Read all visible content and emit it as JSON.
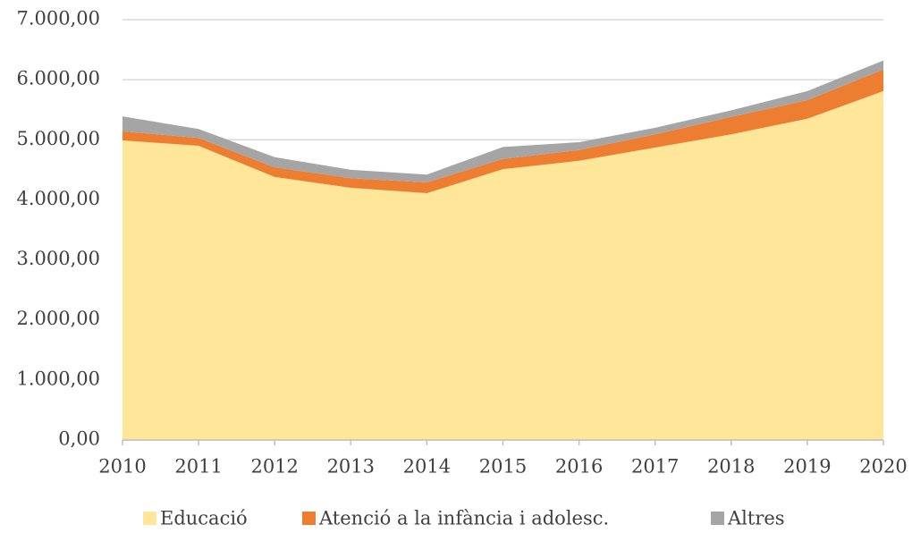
{
  "chart_data": {
    "type": "stacked_area",
    "categories": [
      "2010",
      "2011",
      "2012",
      "2013",
      "2014",
      "2015",
      "2016",
      "2017",
      "2018",
      "2019",
      "2020"
    ],
    "series": [
      {
        "name": "Educació",
        "color": "#ffe699",
        "values": [
          4990,
          4900,
          4380,
          4200,
          4110,
          4510,
          4650,
          4870,
          5090,
          5350,
          5810
        ]
      },
      {
        "name": "Atenció a la infància i adolesc.",
        "color": "#ed7d31",
        "values": [
          150,
          130,
          160,
          160,
          180,
          170,
          180,
          220,
          290,
          310,
          360
        ]
      },
      {
        "name": "Altres",
        "color": "#a5a5a5",
        "values": [
          250,
          150,
          170,
          140,
          130,
          200,
          130,
          110,
          110,
          150,
          150
        ]
      }
    ],
    "ylim": [
      0,
      7000
    ],
    "yticks": [
      {
        "value": 0,
        "label": "0,00"
      },
      {
        "value": 1000,
        "label": "1.000,00"
      },
      {
        "value": 2000,
        "label": "2.000,00"
      },
      {
        "value": 3000,
        "label": "3.000,00"
      },
      {
        "value": 4000,
        "label": "4.000,00"
      },
      {
        "value": 5000,
        "label": "5.000,00"
      },
      {
        "value": 6000,
        "label": "6.000,00"
      },
      {
        "value": 7000,
        "label": "7.000,00"
      }
    ],
    "grid": true,
    "legend": "bottom"
  }
}
